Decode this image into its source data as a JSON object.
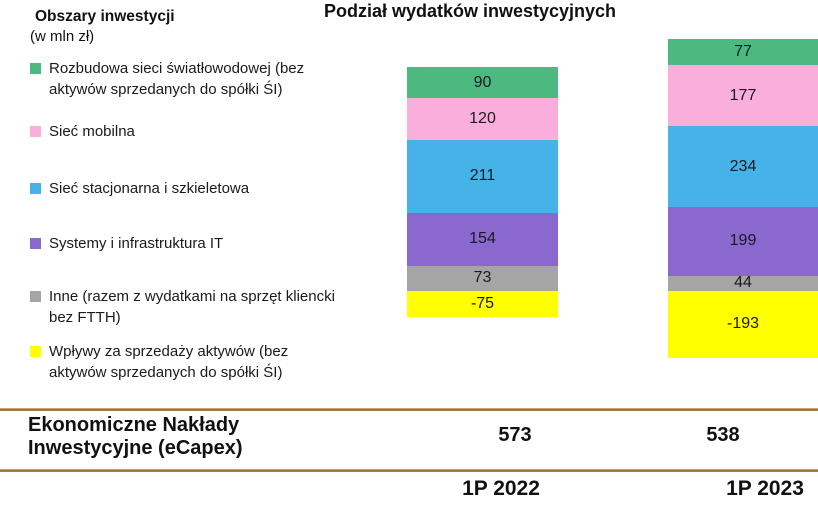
{
  "title": "Podział wydatków inwestycyjnych",
  "legend": {
    "header": "Obszary inwestycji",
    "subheader": "(w mln zł)",
    "items": [
      {
        "label": "Rozbudowa sieci światłowodowej (bez\naktywów sprzedanych do spółki ŚI)",
        "color": "#4CBA80"
      },
      {
        "label": "Sieć mobilna",
        "color": "#F9AEDC"
      },
      {
        "label": "Sieć stacjonarna i szkieletowa",
        "color": "#45B2E8"
      },
      {
        "label": "Systemy i infrastruktura IT",
        "color": "#8B68CE"
      },
      {
        "label": "Inne (razem z wydatkami na sprzęt kliencki\nbez FTTH)",
        "color": "#A5A5A5"
      },
      {
        "label": "Wpływy za sprzedaży aktywów (bez\naktywów sprzedanych do spółki ŚI)",
        "color": "#FFFF00"
      }
    ]
  },
  "chart_data": {
    "type": "bar",
    "stacked": true,
    "title": "Podział wydatków inwestycyjnych",
    "unit": "mln zł",
    "categories": [
      "1P 2022",
      "1P 2023"
    ],
    "series": [
      {
        "name": "Rozbudowa sieci światłowodowej (bez aktywów sprzedanych do spółki ŚI)",
        "color": "#4CBA80",
        "values": [
          90,
          77
        ]
      },
      {
        "name": "Sieć mobilna",
        "color": "#F9AEDC",
        "values": [
          120,
          177
        ]
      },
      {
        "name": "Sieć stacjonarna i szkieletowa",
        "color": "#45B2E8",
        "values": [
          211,
          234
        ]
      },
      {
        "name": "Systemy i infrastruktura IT",
        "color": "#8B68CE",
        "values": [
          154,
          199
        ]
      },
      {
        "name": "Inne (razem z wydatkami na sprzęt kliencki bez FTTH)",
        "color": "#A5A5A5",
        "values": [
          73,
          44
        ]
      },
      {
        "name": "Wpływy za sprzedaży aktywów (bez aktywów sprzedanych do spółki ŚI)",
        "color": "#FFFF00",
        "values": [
          -75,
          -193
        ]
      }
    ],
    "totals_row": {
      "label": "Ekonomiczne Nakłady Inwestycyjne (eCapex)",
      "values": [
        573,
        538
      ]
    },
    "legend_position": "left",
    "grid": false
  },
  "ecapex": {
    "label": "Ekonomiczne Nakłady\nInwestycyjne (eCapex)",
    "values": [
      "573",
      "538"
    ]
  },
  "periods": [
    "1P 2022",
    "1P 2023"
  ]
}
